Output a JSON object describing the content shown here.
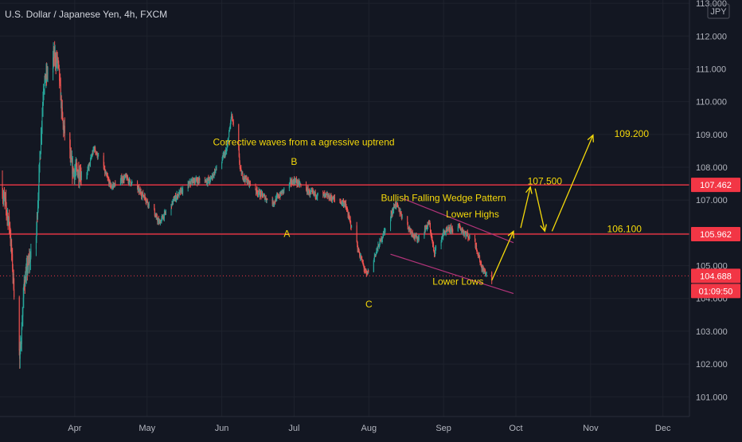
{
  "chart_data": {
    "type": "candlestick",
    "title": "U.S. Dollar / Japanese Yen, 4h, FXCM",
    "currency_badge": "JPY",
    "ylim": [
      100.4,
      113.1
    ],
    "xlim": [
      "2020-03-01",
      "2020-12-12"
    ],
    "y_ticks": [
      "101.000",
      "102.000",
      "103.000",
      "104.000",
      "105.000",
      "106.000",
      "107.000",
      "108.000",
      "109.000",
      "110.000",
      "111.000",
      "112.000",
      "113.000"
    ],
    "x_ticks": [
      {
        "label": "Apr",
        "date": "2020-04-01"
      },
      {
        "label": "May",
        "date": "2020-05-01"
      },
      {
        "label": "Jun",
        "date": "2020-06-01"
      },
      {
        "label": "Jul",
        "date": "2020-07-01"
      },
      {
        "label": "Aug",
        "date": "2020-08-01"
      },
      {
        "label": "Sep",
        "date": "2020-09-01"
      },
      {
        "label": "Oct",
        "date": "2020-10-01"
      },
      {
        "label": "Nov",
        "date": "2020-11-01"
      },
      {
        "label": "Dec",
        "date": "2020-12-01"
      }
    ],
    "price_anchors": [
      [
        "2020-03-01",
        107.6
      ],
      [
        "2020-03-05",
        106.2
      ],
      [
        "2020-03-09",
        101.8
      ],
      [
        "2020-03-11",
        104.5
      ],
      [
        "2020-03-16",
        106.0
      ],
      [
        "2020-03-19",
        110.5
      ],
      [
        "2020-03-23",
        111.4
      ],
      [
        "2020-03-25",
        111.2
      ],
      [
        "2020-03-27",
        109.3
      ],
      [
        "2020-03-31",
        107.9
      ],
      [
        "2020-04-06",
        107.8
      ],
      [
        "2020-04-09",
        108.6
      ],
      [
        "2020-04-16",
        107.4
      ],
      [
        "2020-04-22",
        107.7
      ],
      [
        "2020-04-30",
        107.1
      ],
      [
        "2020-05-06",
        106.3
      ],
      [
        "2020-05-13",
        107.1
      ],
      [
        "2020-05-20",
        107.6
      ],
      [
        "2020-05-27",
        107.6
      ],
      [
        "2020-06-03",
        108.5
      ],
      [
        "2020-06-05",
        109.6
      ],
      [
        "2020-06-09",
        107.8
      ],
      [
        "2020-06-15",
        107.3
      ],
      [
        "2020-06-22",
        106.9
      ],
      [
        "2020-06-29",
        107.5
      ],
      [
        "2020-07-01",
        107.6
      ],
      [
        "2020-07-08",
        107.2
      ],
      [
        "2020-07-15",
        107.1
      ],
      [
        "2020-07-22",
        106.9
      ],
      [
        "2020-07-27",
        105.6
      ],
      [
        "2020-07-31",
        104.7
      ],
      [
        "2020-08-05",
        105.6
      ],
      [
        "2020-08-12",
        106.9
      ],
      [
        "2020-08-17",
        106.2
      ],
      [
        "2020-08-21",
        105.8
      ],
      [
        "2020-08-26",
        106.3
      ],
      [
        "2020-08-28",
        105.4
      ],
      [
        "2020-09-01",
        106.0
      ],
      [
        "2020-09-07",
        106.2
      ],
      [
        "2020-09-14",
        105.7
      ],
      [
        "2020-09-17",
        104.9
      ],
      [
        "2020-09-21",
        104.5
      ]
    ],
    "horizontal_levels": [
      {
        "price": 107.462,
        "label": "107.462",
        "color": "#f23645",
        "style": "solid"
      },
      {
        "price": 105.962,
        "label": "105.962",
        "color": "#f23645",
        "style": "solid"
      },
      {
        "price": 104.688,
        "label": "104.688",
        "color": "#f23645",
        "style": "dotted"
      }
    ],
    "countdown_label": "01:09:50",
    "wedge_lines": [
      {
        "from": {
          "date": "2020-08-15",
          "price": 107.05
        },
        "to": {
          "date": "2020-09-30",
          "price": 105.7
        },
        "color": "#b3347a"
      },
      {
        "from": {
          "date": "2020-08-10",
          "price": 105.35
        },
        "to": {
          "date": "2020-09-30",
          "price": 104.15
        },
        "color": "#b3347a"
      }
    ],
    "projection_arrows": [
      {
        "from": {
          "date": "2020-09-21",
          "price": 104.55
        },
        "to": {
          "date": "2020-09-30",
          "price": 106.05
        }
      },
      {
        "from": {
          "date": "2020-10-03",
          "price": 106.15
        },
        "to": {
          "date": "2020-10-07",
          "price": 107.4
        }
      },
      {
        "from": {
          "date": "2020-10-09",
          "price": 107.35
        },
        "to": {
          "date": "2020-10-13",
          "price": 106.05
        }
      },
      {
        "from": {
          "date": "2020-10-16",
          "price": 106.05
        },
        "to": {
          "date": "2020-11-02",
          "price": 108.98
        }
      }
    ],
    "annotations": [
      {
        "text": "Corrective waves from a agressive uptrend",
        "date": "2020-07-05",
        "price": 108.75
      },
      {
        "text": "B",
        "date": "2020-07-01",
        "price": 108.15
      },
      {
        "text": "A",
        "date": "2020-06-28",
        "price": 105.95
      },
      {
        "text": "C",
        "date": "2020-08-01",
        "price": 103.8
      },
      {
        "text": "Bullish Falling Wedge Pattern",
        "date": "2020-09-01",
        "price": 107.05
      },
      {
        "text": "Lower Highs",
        "date": "2020-09-13",
        "price": 106.55
      },
      {
        "text": "Lower Lows",
        "date": "2020-09-07",
        "price": 104.5
      },
      {
        "text": "109.200",
        "date": "2020-11-18",
        "price": 109.0
      },
      {
        "text": "107.500",
        "date": "2020-10-13",
        "price": 107.55
      },
      {
        "text": "106.100",
        "date": "2020-11-15",
        "price": 106.1
      }
    ],
    "colors": {
      "background": "#131722",
      "grid": "#1e222d",
      "up": "#26a69a",
      "down": "#ef5350",
      "level_line": "#f23645",
      "annotation": "#f5d90a",
      "wedge": "#b3347a",
      "axis_text": "#b2b5be",
      "title_text": "#d1d4dc"
    }
  }
}
